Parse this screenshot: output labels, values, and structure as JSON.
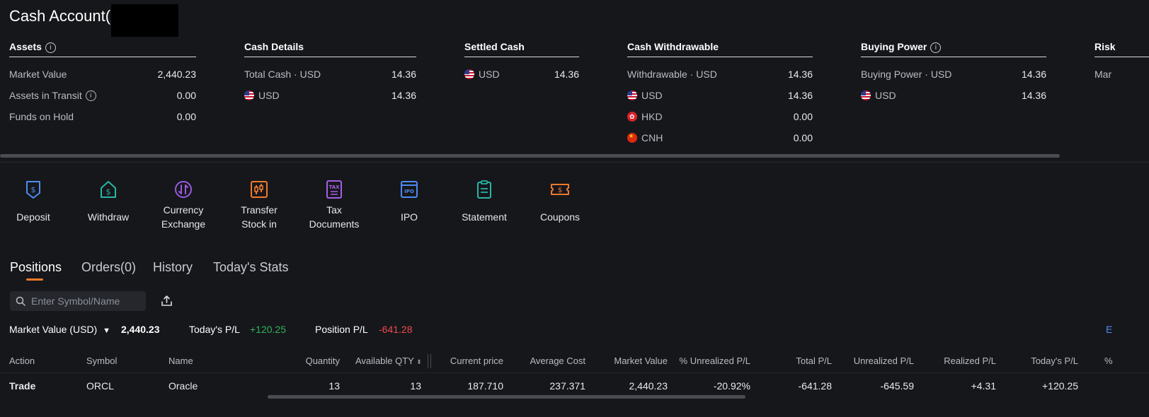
{
  "header": {
    "title": "Cash Account("
  },
  "assets": {
    "title": "Assets",
    "rows": [
      {
        "label": "Market Value",
        "value": "2,440.23"
      },
      {
        "label": "Assets in Transit",
        "value": "0.00"
      },
      {
        "label": "Funds on Hold",
        "value": "0.00"
      }
    ]
  },
  "cash_details": {
    "title": "Cash Details",
    "rows": [
      {
        "label": "Total Cash · USD",
        "value": "14.36"
      },
      {
        "label": "USD",
        "value": "14.36"
      }
    ]
  },
  "settled_cash": {
    "title": "Settled Cash",
    "rows": [
      {
        "label": "USD",
        "value": "14.36"
      }
    ]
  },
  "cash_withdrawable": {
    "title": "Cash Withdrawable",
    "rows": [
      {
        "label": "Withdrawable · USD",
        "value": "14.36"
      },
      {
        "label": "USD",
        "value": "14.36"
      },
      {
        "label": "HKD",
        "value": "0.00"
      },
      {
        "label": "CNH",
        "value": "0.00"
      }
    ]
  },
  "buying_power": {
    "title": "Buying Power",
    "rows": [
      {
        "label": "Buying Power · USD",
        "value": "14.36"
      },
      {
        "label": "USD",
        "value": "14.36"
      }
    ]
  },
  "risk": {
    "title": "Risk",
    "first_row": "Mar"
  },
  "toolbar": {
    "deposit": "Deposit",
    "withdraw": "Withdraw",
    "currency_exchange": [
      "Currency",
      "Exchange"
    ],
    "transfer_stock": [
      "Transfer",
      "Stock in"
    ],
    "tax_documents": [
      "Tax",
      "Documents"
    ],
    "ipo": "IPO",
    "statement": "Statement",
    "coupons": "Coupons",
    "tax_icon_text": "TAX",
    "ipo_icon_text": "IPO"
  },
  "tabs": [
    "Positions",
    "Orders(0)",
    "History",
    "Today's Stats"
  ],
  "search": {
    "placeholder": "Enter Symbol/Name"
  },
  "summary": {
    "market_value_label": "Market Value (USD)",
    "market_value": "2,440.23",
    "todays_pl_label": "Today's P/L",
    "todays_pl": "+120.25",
    "position_pl_label": "Position P/L",
    "position_pl": "-641.28",
    "right_edge": "E"
  },
  "table": {
    "headers": [
      "Action",
      "Symbol",
      "Name",
      "Quantity",
      "Available QTY",
      "Current price",
      "Average Cost",
      "Market Value",
      "% Unrealized P/L",
      "Total P/L",
      "Unrealized P/L",
      "Realized P/L",
      "Today's P/L",
      "%"
    ],
    "rows": [
      {
        "action": "Trade",
        "symbol": "ORCL",
        "name": "Oracle",
        "quantity": "13",
        "available_qty": "13",
        "current_price": "187.710",
        "average_cost": "237.371",
        "market_value": "2,440.23",
        "pct_unrealized_pl": "-20.92%",
        "total_pl": "-641.28",
        "unrealized_pl": "-645.59",
        "realized_pl": "+4.31",
        "todays_pl": "+120.25"
      }
    ]
  },
  "colors": {
    "accent": "#f0792b",
    "gain": "#2fb35b",
    "loss": "#f04a4f",
    "link": "#4d8bf0",
    "background": "#16171b"
  }
}
